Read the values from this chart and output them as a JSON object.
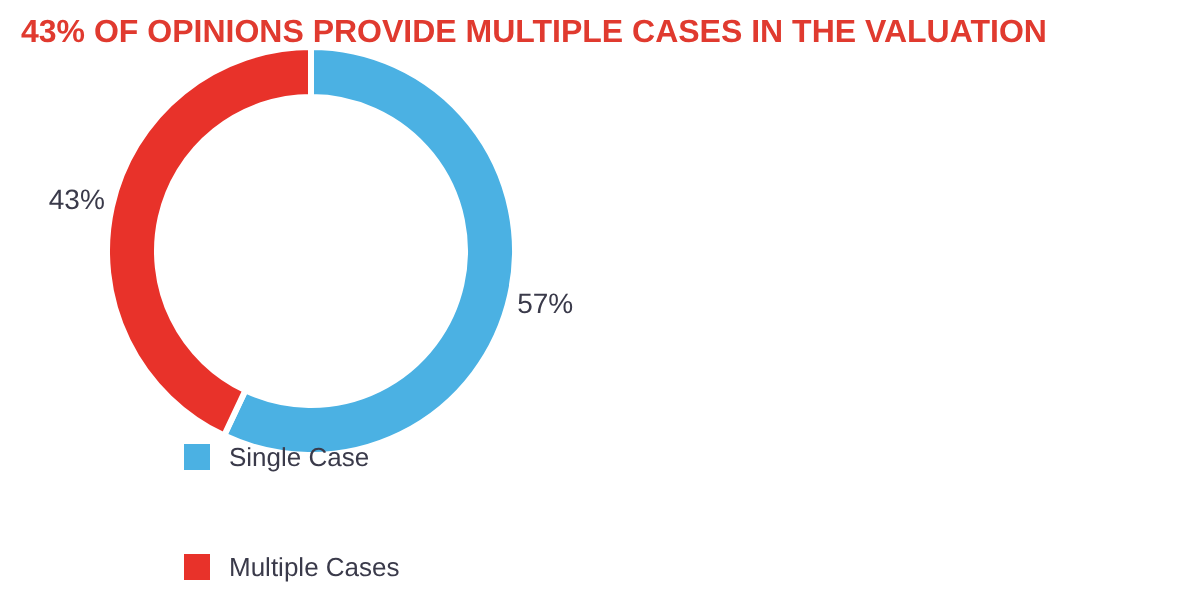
{
  "chart_data": {
    "type": "donut",
    "title": "43% OF OPINIONS PROVIDE MULTIPLE CASES IN THE VALUATION",
    "categories": [
      "Single Case",
      "Multiple Cases"
    ],
    "values": [
      57,
      43
    ],
    "colors": [
      "#4bb1e3",
      "#e8322a"
    ],
    "value_labels": [
      "57%",
      "43%"
    ],
    "legend": "bottom"
  }
}
